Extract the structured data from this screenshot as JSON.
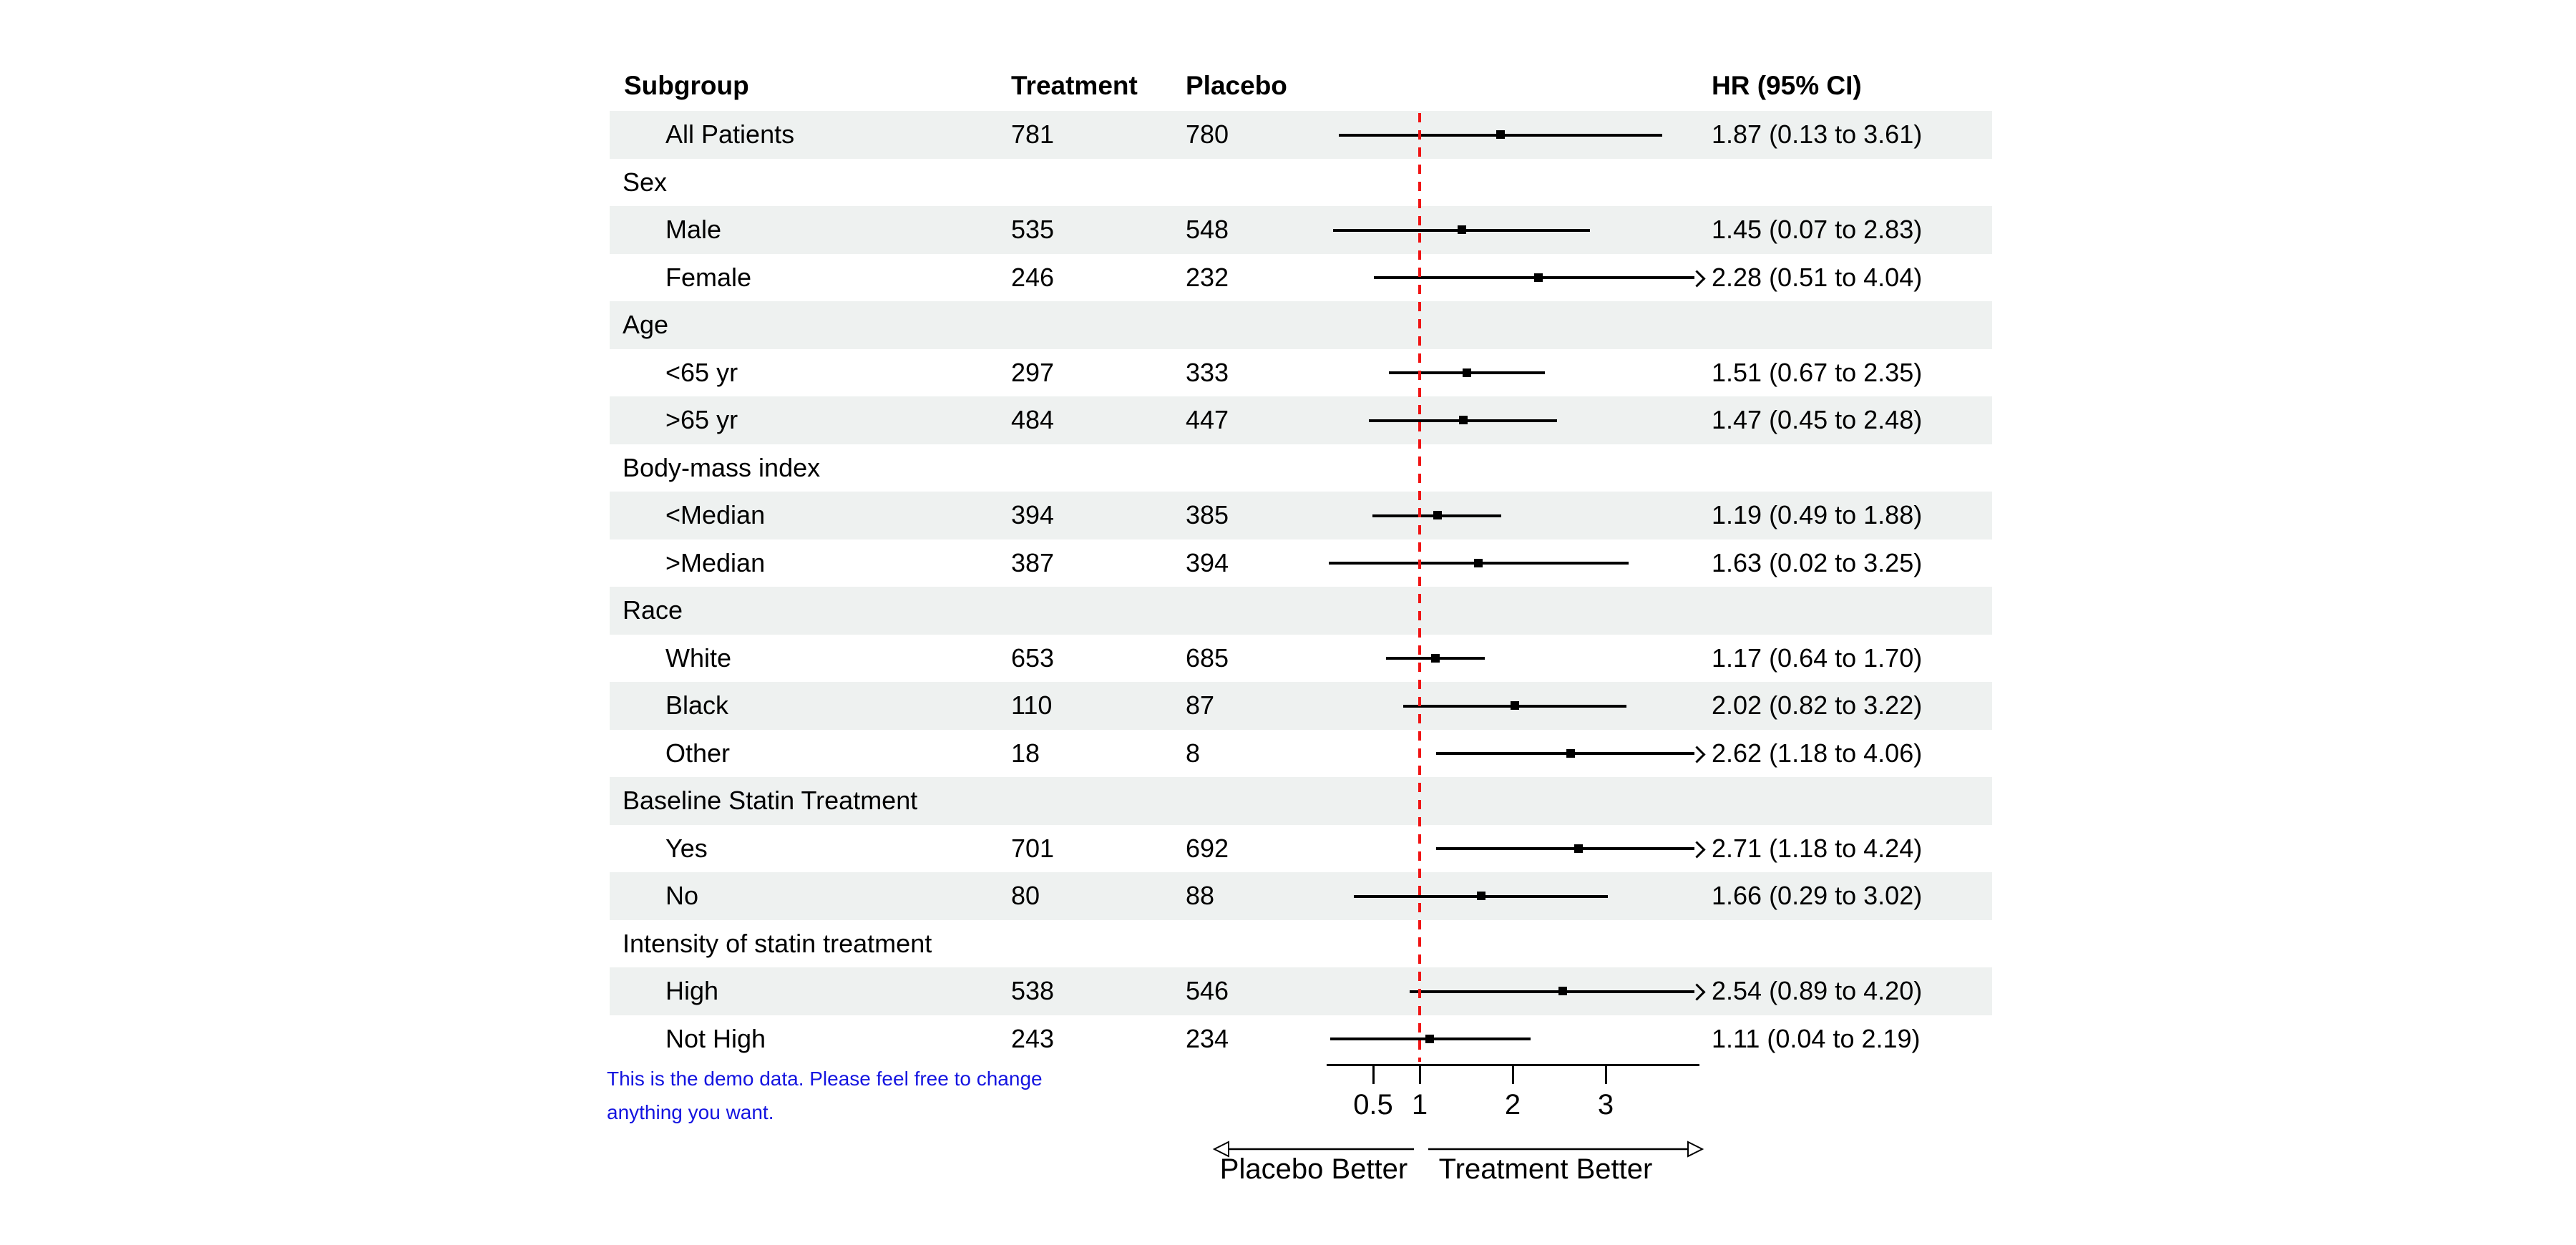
{
  "colors": {
    "stripe": "#eef1f0",
    "reference_line": "#f01414",
    "ci": "#000000",
    "note_text": "#1414e0",
    "text": "#000000"
  },
  "chart_data": {
    "type": "forest",
    "title": "",
    "columns": {
      "subgroup": "Subgroup",
      "treatment": "Treatment",
      "placebo": "Placebo",
      "hr": "HR (95% CI)"
    },
    "axis": {
      "scale": "linear",
      "range": [
        0,
        4.0
      ],
      "ticks": [
        0.5,
        1,
        2,
        3
      ],
      "reference_line": 1
    },
    "direction_labels": {
      "left": "Placebo Better",
      "right": "Treatment Better"
    },
    "note": {
      "lines": [
        "This is the demo data. Please feel free to change",
        "anything you want."
      ]
    },
    "rows": [
      {
        "type": "item",
        "label": "All Patients",
        "treatment": "781",
        "placebo": "780",
        "hr": 1.87,
        "lo": 0.13,
        "hi": 3.61,
        "hr_text": "1.87 (0.13 to 3.61)",
        "arrow": false,
        "stripe": true
      },
      {
        "type": "group",
        "label": "Sex",
        "stripe": false
      },
      {
        "type": "item",
        "label": "Male",
        "treatment": "535",
        "placebo": "548",
        "hr": 1.45,
        "lo": 0.07,
        "hi": 2.83,
        "hr_text": "1.45 (0.07 to 2.83)",
        "arrow": false,
        "stripe": true
      },
      {
        "type": "item",
        "label": "Female",
        "treatment": "246",
        "placebo": "232",
        "hr": 2.28,
        "lo": 0.51,
        "hi": 4.04,
        "hr_text": "2.28 (0.51 to 4.04)",
        "arrow": true,
        "stripe": false
      },
      {
        "type": "group",
        "label": "Age",
        "stripe": true
      },
      {
        "type": "item",
        "label": "<65 yr",
        "treatment": "297",
        "placebo": "333",
        "hr": 1.51,
        "lo": 0.67,
        "hi": 2.35,
        "hr_text": "1.51 (0.67 to 2.35)",
        "arrow": false,
        "stripe": false
      },
      {
        "type": "item",
        "label": ">65 yr",
        "treatment": "484",
        "placebo": "447",
        "hr": 1.47,
        "lo": 0.45,
        "hi": 2.48,
        "hr_text": "1.47 (0.45 to 2.48)",
        "arrow": false,
        "stripe": true
      },
      {
        "type": "group",
        "label": "Body-mass index",
        "stripe": false
      },
      {
        "type": "item",
        "label": "<Median",
        "treatment": "394",
        "placebo": "385",
        "hr": 1.19,
        "lo": 0.49,
        "hi": 1.88,
        "hr_text": "1.19 (0.49 to 1.88)",
        "arrow": false,
        "stripe": true
      },
      {
        "type": "item",
        "label": ">Median",
        "treatment": "387",
        "placebo": "394",
        "hr": 1.63,
        "lo": 0.02,
        "hi": 3.25,
        "hr_text": "1.63 (0.02 to 3.25)",
        "arrow": false,
        "stripe": false
      },
      {
        "type": "group",
        "label": "Race",
        "stripe": true
      },
      {
        "type": "item",
        "label": "White",
        "treatment": "653",
        "placebo": "685",
        "hr": 1.17,
        "lo": 0.64,
        "hi": 1.7,
        "hr_text": "1.17 (0.64 to 1.70)",
        "arrow": false,
        "stripe": false
      },
      {
        "type": "item",
        "label": "Black",
        "treatment": "110",
        "placebo": "87",
        "hr": 2.02,
        "lo": 0.82,
        "hi": 3.22,
        "hr_text": "2.02 (0.82 to 3.22)",
        "arrow": false,
        "stripe": true
      },
      {
        "type": "item",
        "label": "Other",
        "treatment": "18",
        "placebo": "8",
        "hr": 2.62,
        "lo": 1.18,
        "hi": 4.06,
        "hr_text": "2.62 (1.18 to 4.06)",
        "arrow": true,
        "stripe": false
      },
      {
        "type": "group",
        "label": "Baseline Statin Treatment",
        "stripe": true
      },
      {
        "type": "item",
        "label": "Yes",
        "treatment": "701",
        "placebo": "692",
        "hr": 2.71,
        "lo": 1.18,
        "hi": 4.24,
        "hr_text": "2.71 (1.18 to 4.24)",
        "arrow": true,
        "stripe": false
      },
      {
        "type": "item",
        "label": "No",
        "treatment": "80",
        "placebo": "88",
        "hr": 1.66,
        "lo": 0.29,
        "hi": 3.02,
        "hr_text": "1.66 (0.29 to 3.02)",
        "arrow": false,
        "stripe": true
      },
      {
        "type": "group",
        "label": "Intensity of statin treatment",
        "stripe": false
      },
      {
        "type": "item",
        "label": "High",
        "treatment": "538",
        "placebo": "546",
        "hr": 2.54,
        "lo": 0.89,
        "hi": 4.2,
        "hr_text": "2.54 (0.89 to 4.20)",
        "arrow": true,
        "stripe": true
      },
      {
        "type": "item",
        "label": "Not High",
        "treatment": "243",
        "placebo": "234",
        "hr": 1.11,
        "lo": 0.04,
        "hi": 2.19,
        "hr_text": "1.11 (0.04 to 2.19)",
        "arrow": false,
        "stripe": false
      }
    ]
  }
}
